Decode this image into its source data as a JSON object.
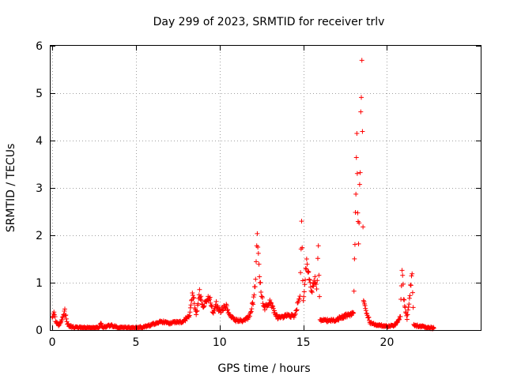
{
  "chart_data": {
    "type": "scatter",
    "title": "Day 299 of 2023, SRMTID for receiver trlv",
    "xlabel": "GPS time / hours",
    "ylabel": "SRMTID / TECUs",
    "xlim": [
      -0.1,
      25.6
    ],
    "ylim": [
      0,
      6
    ],
    "xticks": [
      0,
      5,
      10,
      15,
      20
    ],
    "yticks": [
      0,
      1,
      2,
      3,
      4,
      5,
      6
    ],
    "xtick_labels": [
      "0",
      "5",
      "10",
      "15",
      "20"
    ],
    "ytick_labels": [
      "0",
      "1",
      "2",
      "3",
      "4",
      "5",
      "6"
    ],
    "grid": true,
    "legend": "none",
    "marker": "+",
    "series": [
      {
        "name": "SRMTID",
        "color": "#ff0000",
        "keypoints": [
          [
            0.0,
            0.3
          ],
          [
            0.1,
            0.35
          ],
          [
            0.2,
            0.2
          ],
          [
            0.35,
            0.1
          ],
          [
            0.5,
            0.15
          ],
          [
            0.7,
            0.35
          ],
          [
            0.75,
            0.4
          ],
          [
            0.9,
            0.12
          ],
          [
            1.2,
            0.06
          ],
          [
            2.0,
            0.05
          ],
          [
            2.8,
            0.05
          ],
          [
            2.9,
            0.15
          ],
          [
            3.0,
            0.05
          ],
          [
            3.5,
            0.1
          ],
          [
            4.0,
            0.05
          ],
          [
            5.0,
            0.05
          ],
          [
            5.5,
            0.07
          ],
          [
            6.0,
            0.12
          ],
          [
            6.5,
            0.18
          ],
          [
            7.0,
            0.15
          ],
          [
            7.8,
            0.18
          ],
          [
            8.2,
            0.3
          ],
          [
            8.4,
            0.8
          ],
          [
            8.6,
            0.3
          ],
          [
            8.8,
            0.8
          ],
          [
            9.0,
            0.5
          ],
          [
            9.2,
            0.6
          ],
          [
            9.4,
            0.7
          ],
          [
            9.6,
            0.35
          ],
          [
            9.8,
            0.55
          ],
          [
            10.0,
            0.4
          ],
          [
            10.4,
            0.5
          ],
          [
            10.6,
            0.3
          ],
          [
            11.0,
            0.2
          ],
          [
            11.5,
            0.2
          ],
          [
            11.8,
            0.3
          ],
          [
            12.0,
            0.6
          ],
          [
            12.15,
            1.0
          ],
          [
            12.25,
            2.0
          ],
          [
            12.35,
            1.3
          ],
          [
            12.5,
            0.7
          ],
          [
            12.7,
            0.45
          ],
          [
            13.0,
            0.6
          ],
          [
            13.3,
            0.35
          ],
          [
            13.5,
            0.25
          ],
          [
            14.0,
            0.3
          ],
          [
            14.5,
            0.3
          ],
          [
            14.8,
            0.75
          ],
          [
            14.9,
            2.2
          ],
          [
            15.0,
            0.6
          ],
          [
            15.2,
            1.5
          ],
          [
            15.35,
            1.1
          ],
          [
            15.5,
            0.8
          ],
          [
            15.7,
            1.1
          ],
          [
            15.8,
            0.85
          ],
          [
            15.9,
            1.7
          ],
          [
            16.0,
            0.2
          ],
          [
            16.5,
            0.2
          ],
          [
            17.0,
            0.22
          ],
          [
            17.5,
            0.3
          ],
          [
            18.0,
            0.35
          ],
          [
            18.2,
            4.1
          ],
          [
            18.25,
            2.5
          ],
          [
            18.3,
            1.8
          ],
          [
            18.4,
            3.5
          ],
          [
            18.5,
            5.9
          ],
          [
            18.6,
            0.6
          ],
          [
            18.8,
            0.35
          ],
          [
            19.0,
            0.15
          ],
          [
            19.5,
            0.1
          ],
          [
            20.0,
            0.08
          ],
          [
            20.5,
            0.1
          ],
          [
            20.8,
            0.3
          ],
          [
            20.9,
            1.3
          ],
          [
            21.0,
            0.7
          ],
          [
            21.2,
            0.2
          ],
          [
            21.4,
            0.9
          ],
          [
            21.5,
            1.25
          ],
          [
            21.6,
            0.1
          ],
          [
            22.0,
            0.08
          ],
          [
            22.5,
            0.05
          ],
          [
            22.8,
            0.04
          ]
        ]
      }
    ]
  }
}
